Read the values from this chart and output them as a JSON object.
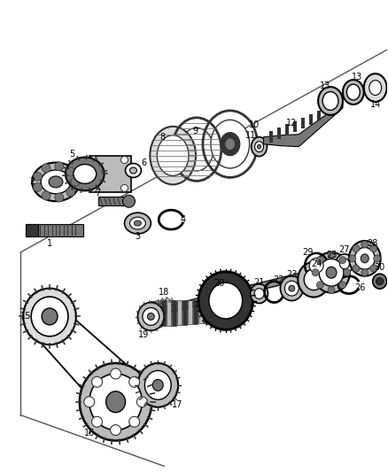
{
  "background_color": "#ffffff",
  "line_color": "#000000",
  "figure_width": 4.38,
  "figure_height": 5.33,
  "dpi": 100,
  "gray_dark": "#333333",
  "gray_mid": "#777777",
  "gray_light": "#bbbbbb",
  "gray_lighter": "#dddddd",
  "white": "#ffffff"
}
